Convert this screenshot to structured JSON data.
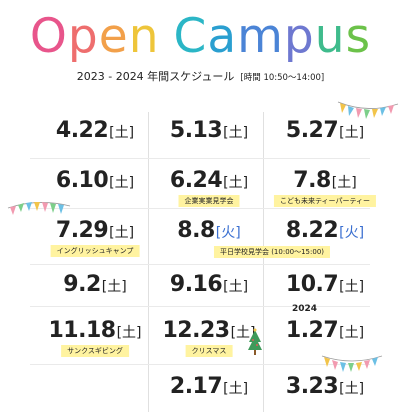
{
  "title": {
    "letters": [
      "O",
      "p",
      "e",
      "n",
      " ",
      "C",
      "a",
      "m",
      "p",
      "u",
      "s"
    ],
    "colors": [
      "#e8558b",
      "#ee6e6e",
      "#f2a04a",
      "#eec53a",
      "#ffffff",
      "#2bb6c6",
      "#2a9fd0",
      "#4b84d6",
      "#6e78d0",
      "#3fbb8c",
      "#6cc24a"
    ]
  },
  "subtitle": {
    "main": "2023 - 2024 年間スケジュール",
    "time": "[時間 10:50〜14:00]"
  },
  "cells": [
    {
      "num": "4.22",
      "day": "[土]"
    },
    {
      "num": "5.13",
      "day": "[土]"
    },
    {
      "num": "5.27",
      "day": "[土]"
    },
    {
      "num": "6.10",
      "day": "[土]"
    },
    {
      "num": "6.24",
      "day": "[土]",
      "tag": "企業実業見学会"
    },
    {
      "num": "7.8",
      "day": "[土]",
      "tag": "こども未来ティーパーティー"
    },
    {
      "num": "7.29",
      "day": "[土]",
      "tag": "イングリッシュキャンプ"
    },
    {
      "num": "8.8",
      "day": "[火]",
      "blue": true
    },
    {
      "num": "8.22",
      "day": "[火]",
      "blue": true
    },
    {
      "num": "9.2",
      "day": "[土]"
    },
    {
      "num": "9.16",
      "day": "[土]"
    },
    {
      "num": "10.7",
      "day": "[土]"
    },
    {
      "num": "11.18",
      "day": "[土]",
      "tag": "サンクスギビング"
    },
    {
      "num": "12.23",
      "day": "[土]",
      "tag": "クリスマス"
    },
    {
      "num": "1.27",
      "day": "[土]",
      "year": "2024"
    },
    {
      "num": "2.17",
      "day": "[土]"
    },
    {
      "num": "3.23",
      "day": "[土]"
    }
  ],
  "shared_tag": "平日学校見学会 (10:00〜15:00)"
}
